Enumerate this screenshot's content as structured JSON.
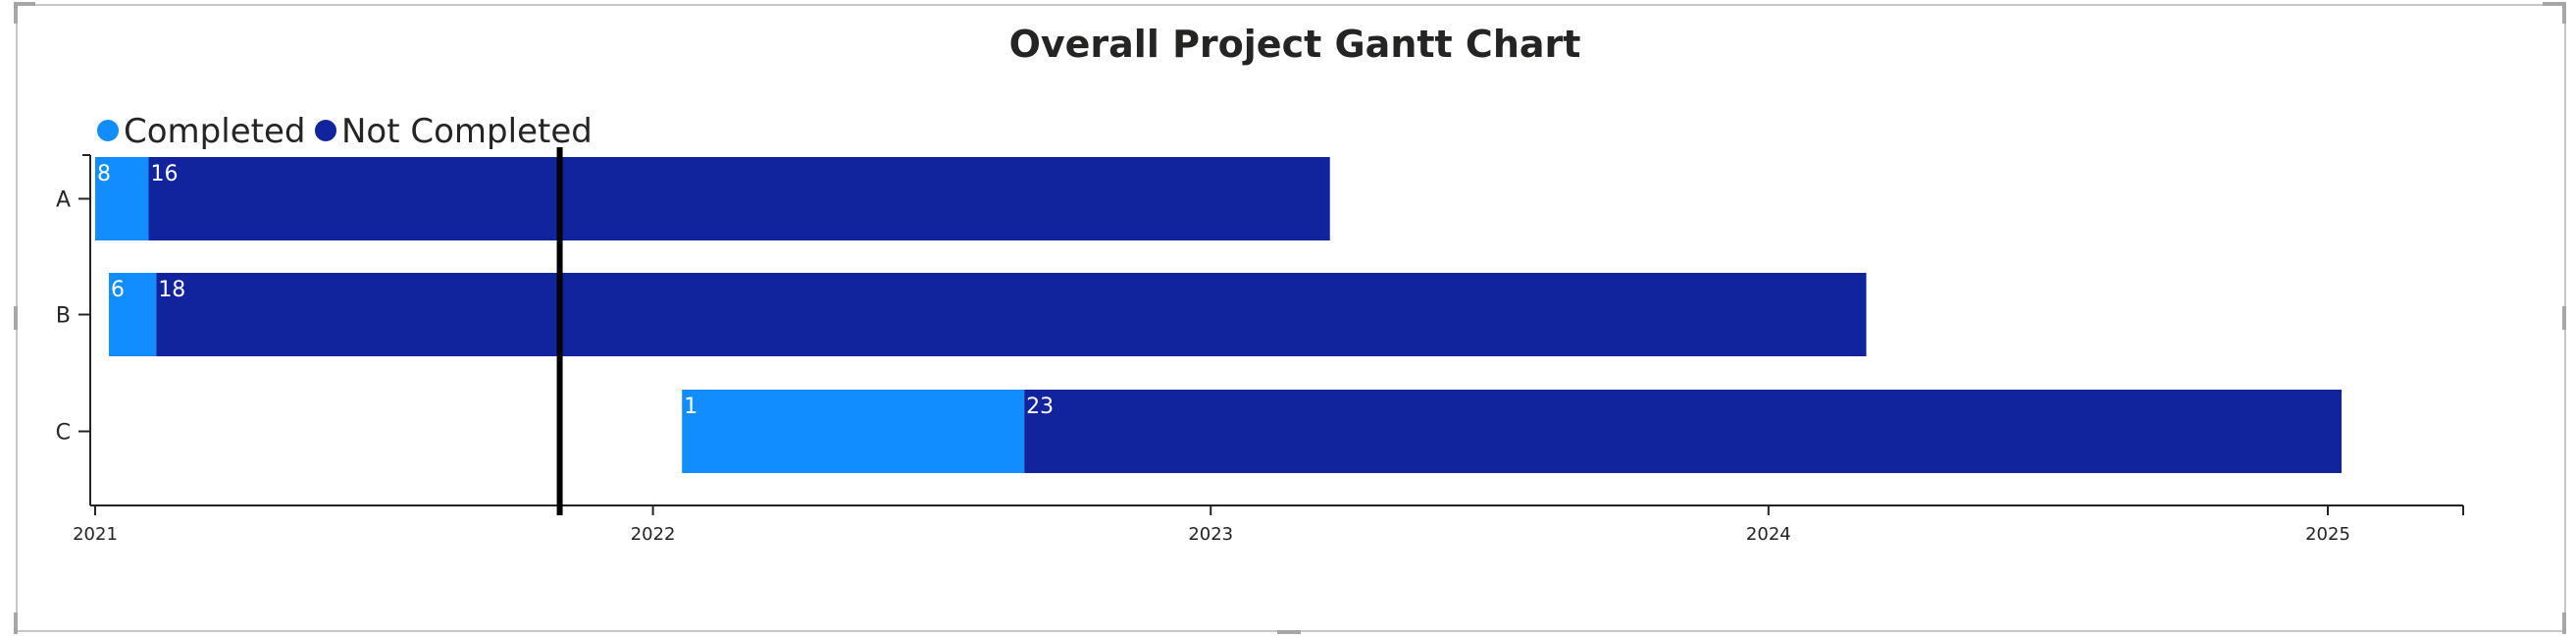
{
  "chart_data": {
    "type": "bar",
    "title": "Overall Project Gantt Chart",
    "legend": {
      "placement": "top-left",
      "items": [
        {
          "label": "Completed",
          "color": "#118dff"
        },
        {
          "label": "Not Completed",
          "color": "#12239e"
        }
      ]
    },
    "categories": [
      "A",
      "B",
      "C"
    ],
    "tasks": [
      {
        "category": "A",
        "start": "2021-01-01",
        "completed_end": "2021-02-05",
        "end": "2023-03-20",
        "completed_label": "8",
        "not_completed_label": "16"
      },
      {
        "category": "B",
        "start": "2021-01-10",
        "completed_end": "2021-02-10",
        "end": "2024-03-05",
        "completed_label": "6",
        "not_completed_label": "18"
      },
      {
        "category": "C",
        "start": "2022-01-20",
        "completed_end": "2022-09-01",
        "end": "2025-01-10",
        "completed_label": "1",
        "not_completed_label": "23"
      }
    ],
    "x_axis": {
      "ticks": [
        "2021",
        "2022",
        "2023",
        "2024",
        "2025"
      ],
      "range": [
        "2021-01-01",
        "2025-07-01"
      ]
    },
    "today_marker": "2021-11-01",
    "grid": false
  }
}
